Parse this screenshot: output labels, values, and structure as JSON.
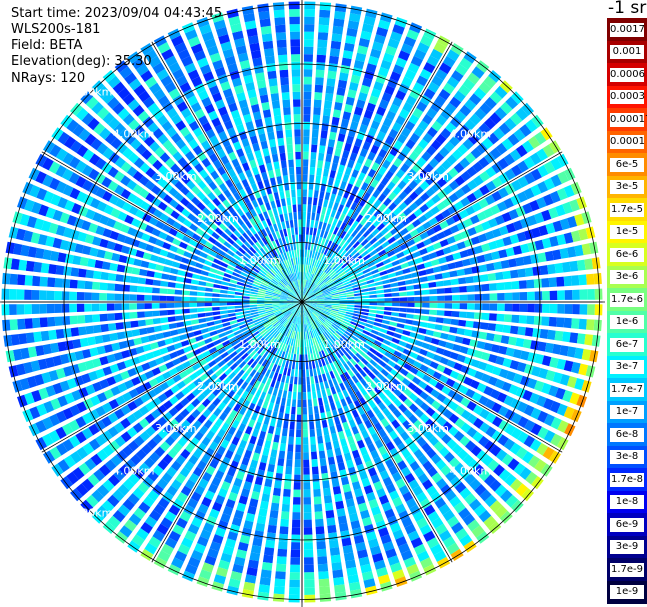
{
  "header": {
    "start_time_label": "Start time:",
    "start_time": "2023/09/04 04:43:45",
    "instrument": "WLS200s-181",
    "field_label": "Field:",
    "field": "BETA",
    "elevation_label": "Elevation(deg):",
    "elevation": "35.30",
    "nrays_label": "NRays:",
    "nrays": "120"
  },
  "colorbar": {
    "title": "-1 sr",
    "entries": [
      {
        "label": "0.0017",
        "color": "#800000"
      },
      {
        "label": "0.001",
        "color": "#a80000"
      },
      {
        "label": "0.0006",
        "color": "#d40000"
      },
      {
        "label": "0.0003",
        "color": "#ff1400"
      },
      {
        "label": "0.00017",
        "color": "#ff3c00"
      },
      {
        "label": "0.0001",
        "color": "#ff6400"
      },
      {
        "label": "6e-5",
        "color": "#ff8c00"
      },
      {
        "label": "3e-5",
        "color": "#ffb400"
      },
      {
        "label": "1.7e-5",
        "color": "#ffdc00"
      },
      {
        "label": "1e-5",
        "color": "#fff500"
      },
      {
        "label": "6e-6",
        "color": "#d8ff20"
      },
      {
        "label": "3e-6",
        "color": "#a8ff50"
      },
      {
        "label": "1.7e-6",
        "color": "#78ff80"
      },
      {
        "label": "1e-6",
        "color": "#50ffa8"
      },
      {
        "label": "6e-7",
        "color": "#28ffd0"
      },
      {
        "label": "3e-7",
        "color": "#00f0ff"
      },
      {
        "label": "1.7e-7",
        "color": "#00c8ff"
      },
      {
        "label": "1e-7",
        "color": "#00a0ff"
      },
      {
        "label": "6e-8",
        "color": "#0078ff"
      },
      {
        "label": "3e-8",
        "color": "#0050ff"
      },
      {
        "label": "1.7e-8",
        "color": "#0028ff"
      },
      {
        "label": "1e-8",
        "color": "#0000f0"
      },
      {
        "label": "6e-9",
        "color": "#0000c0"
      },
      {
        "label": "3e-9",
        "color": "#000090"
      },
      {
        "label": "1.7e-9",
        "color": "#000068"
      },
      {
        "label": "1e-9",
        "color": "#000040"
      }
    ]
  },
  "chart_data": {
    "type": "heatmap",
    "projection": "polar-ppi",
    "field": "BETA",
    "units": "sr-1",
    "n_rays": 120,
    "range_rings_km": [
      1,
      2,
      3,
      4,
      5
    ],
    "range_ring_labels": [
      "1.00km",
      "2.00km",
      "3.00km",
      "4.00km",
      "5.00km"
    ],
    "max_range_km": 5.05,
    "spoke_azimuths_deg": [
      0,
      30,
      60,
      90,
      120,
      150,
      180,
      210,
      240,
      270,
      300,
      330
    ],
    "value_range": [
      1e-09,
      0.0017
    ],
    "scale": "log",
    "features": [
      {
        "description": "elevated backscatter ring near maximum range",
        "range_km": [
          4.6,
          5.05
        ],
        "azimuth_deg": [
          20,
          220
        ],
        "peak_value": 3e-05
      },
      {
        "description": "background clear-air backscatter",
        "range_km": [
          0.5,
          4.6
        ],
        "typical_value": 1e-07
      }
    ]
  }
}
